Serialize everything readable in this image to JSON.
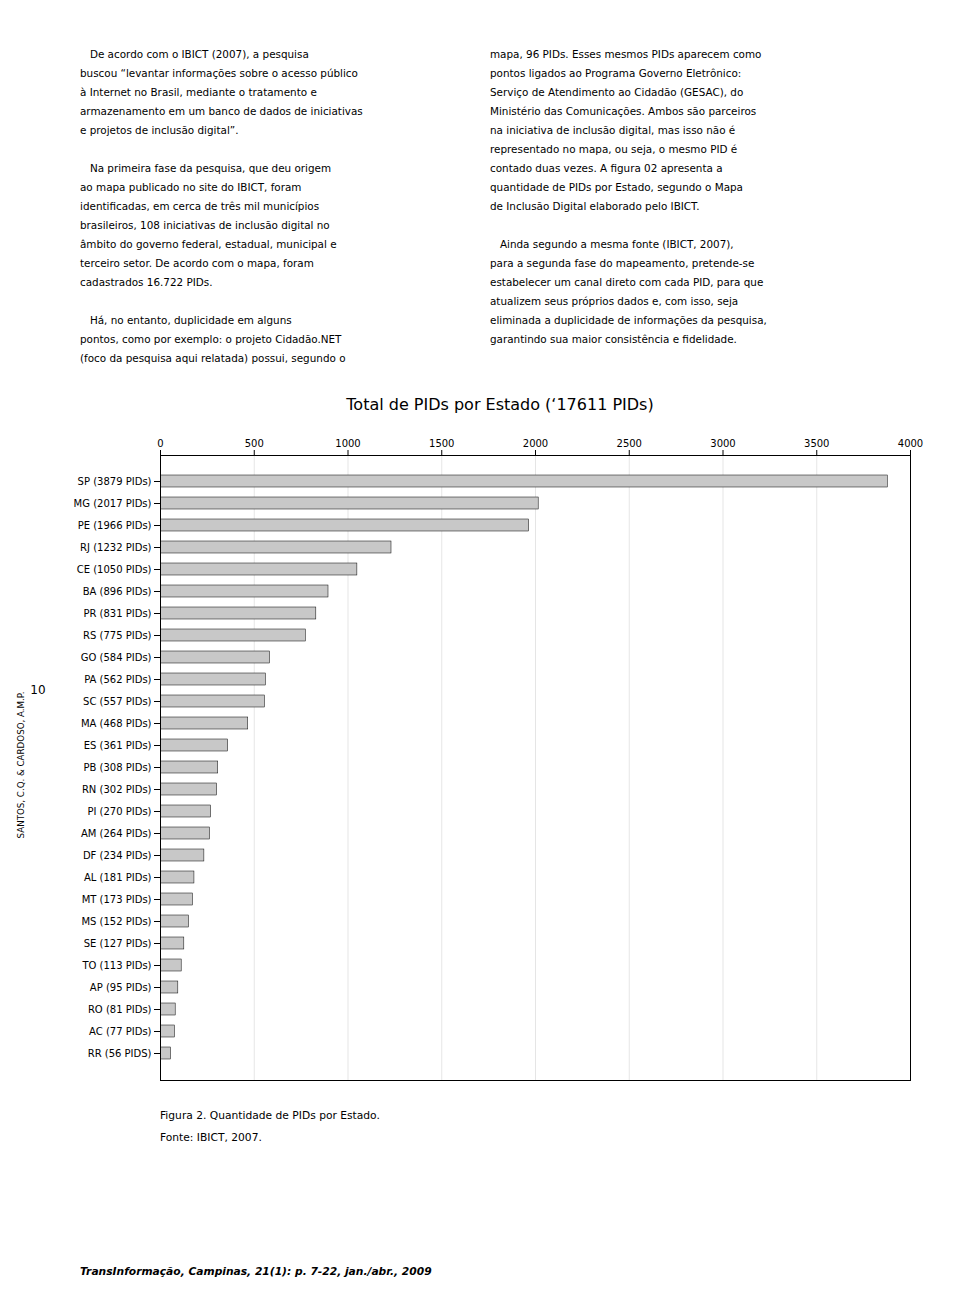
{
  "chart_data": {
    "type": "bar",
    "orientation": "horizontal",
    "title": "Total de PIDs por Estado (‘17611 PIDs)",
    "categories": [
      "SP (3879 PIDs)",
      "MG (2017 PIDs)",
      "PE (1966 PIDs)",
      "RJ (1232 PIDs)",
      "CE (1050 PIDs)",
      "BA (896 PIDs)",
      "PR (831 PIDs)",
      "RS (775 PIDs)",
      "GO (584 PIDs)",
      "PA (562 PIDs)",
      "SC (557 PIDs)",
      "MA (468 PIDs)",
      "ES (361 PIDs)",
      "PB (308 PIDs)",
      "RN (302 PIDs)",
      "PI (270 PIDs)",
      "AM (264 PIDs)",
      "DF (234 PIDs)",
      "AL (181 PIDs)",
      "MT (173 PIDs)",
      "MS (152 PIDs)",
      "SE (127 PIDs)",
      "TO (113 PIDs)",
      "AP (95 PIDs)",
      "RO (81 PIDs)",
      "AC (77 PIDs)",
      "RR (56 PIDS)"
    ],
    "values": [
      3879,
      2017,
      1966,
      1232,
      1050,
      896,
      831,
      775,
      584,
      562,
      557,
      468,
      361,
      308,
      302,
      270,
      264,
      234,
      181,
      173,
      152,
      127,
      113,
      95,
      81,
      77,
      56
    ],
    "color": "#c8c8c8",
    "xlim": [
      0,
      4000
    ],
    "xticks": [
      0,
      500,
      1000,
      1500,
      2000,
      2500,
      3000,
      3500,
      4000
    ],
    "grid": true,
    "text_columns": [
      [
        "   De acordo com o IBICT (2007), a pesquisa",
        "buscou “levantar informações sobre o acesso público",
        "à Internet no Brasil, mediante o tratamento e",
        "armazenamento em um banco de dados de iniciativas",
        "e projetos de inclusão digital”.",
        "   Na primeira fase da pesquisa, que deu origem",
        "ao mapa publicado no site do IBICT, foram",
        "identificadas, em cerca de três mil municípios",
        "brasileiros, 108 iniciativas de inclusão digital no",
        "âmbito do governo federal, estadual, municipal e",
        "terceiro setor. De acordo com o mapa, foram",
        "cadastrados 16.722 PIDs.",
        "   Há, no entanto, duplicidade em alguns",
        "pontos, como por exemplo: o projeto Cidadão.NET",
        "(foco da pesquisa aqui relatada) possui, segundo o"
      ],
      [
        "mapa, 96 PIDs. Esses mesmos PIDs aparecem como",
        "pontos ligados ao Programa Governo Eletrônico:",
        "Serviço de Atendimento ao Cidadão (GESAC), do",
        "Ministério das Comunicações. Ambos são parceiros",
        "na iniciativa de inclusão digital, mas isso não é",
        "representado no mapa, ou seja, o mesmo PID é",
        "contado duas vezes. A figura 02 apresenta a",
        "quantidade de PIDs por Estado, segundo o Mapa",
        "de Inclusão Digital elaborado pelo IBICT.",
        "   Ainda segundo a mesma fonte (IBICT, 2007),",
        "para a segunda fase do mapeamento, pretende-se",
        "estabelecer um canal direto com cada PID, para que",
        "atualizem seus próprios dados e, com isso, seja",
        "eliminada a duplicidade de informações da pesquisa,",
        "garantindo sua maior consistência e fidelidade."
      ]
    ],
    "caption": "Figura 2. Quantidade de PIDs por Estado.",
    "source": "Fonte: IBICT, 2007.",
    "sidebar_text": "SANTOS, C.Q. & CARDOSO, A.M.P.",
    "page_number": "10",
    "footer": "TransInformação, Campinas, 21(1): p. 7-22, jan./abr., 2009"
  }
}
